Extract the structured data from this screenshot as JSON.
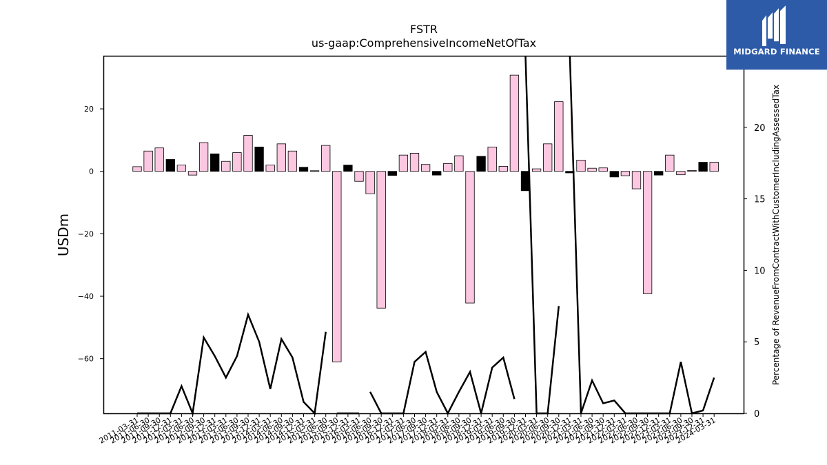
{
  "chart_data": {
    "type": "bar",
    "title": "FSTR",
    "subtitle": "us-gaap:ComprehensiveIncomeNetOfTax",
    "ylabel": "USDm",
    "y2label": "Percentage of RevenueFromContractWithCustomerIncludingAssessedTax",
    "ylim": [
      -77.5,
      37.0
    ],
    "y2lim": [
      0,
      25
    ],
    "yticks": [
      20,
      0,
      -20,
      -40,
      -60
    ],
    "y2ticks": [
      0,
      5,
      10,
      15,
      20,
      25
    ],
    "categories": [
      "2011-03-31",
      "2011-06-30",
      "2011-09-30",
      "2011-12-31",
      "2012-03-31",
      "2012-06-30",
      "2012-09-30",
      "2012-12-31",
      "2013-03-31",
      "2013-06-30",
      "2013-09-30",
      "2013-12-31",
      "2014-03-31",
      "2014-06-30",
      "2014-09-30",
      "2014-12-31",
      "2015-03-31",
      "2015-06-30",
      "2015-09-30",
      "2015-12-31",
      "2016-03-31",
      "2016-06-30",
      "2016-09-30",
      "2016-12-31",
      "2017-03-31",
      "2017-06-30",
      "2017-09-30",
      "2017-12-31",
      "2018-03-31",
      "2018-06-30",
      "2018-09-30",
      "2018-12-31",
      "2019-03-31",
      "2019-06-30",
      "2019-09-30",
      "2019-12-31",
      "2020-03-31",
      "2020-06-30",
      "2020-09-30",
      "2020-12-31",
      "2021-03-31",
      "2021-06-30",
      "2021-09-30",
      "2021-12-31",
      "2022-03-31",
      "2022-06-30",
      "2022-09-30",
      "2022-12-31",
      "2023-03-31",
      "2023-06-30",
      "2023-09-30",
      "2023-12-31",
      "2024-03-31"
    ],
    "series": [
      {
        "kind": "bar",
        "axis": "left",
        "values": [
          1.5,
          6.5,
          7.5,
          3.8,
          2.0,
          -1.2,
          9.2,
          5.6,
          3.2,
          6.0,
          11.5,
          7.8,
          2.0,
          8.8,
          6.5,
          1.3,
          0.2,
          8.3,
          -61.0,
          2.0,
          -3.2,
          -7.2,
          -43.8,
          -1.3,
          5.2,
          5.8,
          2.2,
          -1.2,
          2.5,
          5.0,
          -42.2,
          4.8,
          7.8,
          1.6,
          30.8,
          -6.2,
          0.8,
          8.8,
          22.3,
          -0.5,
          3.6,
          1.0,
          1.1,
          -1.8,
          -1.4,
          -5.6,
          -39.2,
          -1.2,
          5.2,
          -1.1,
          0.3,
          2.9,
          2.9
        ],
        "colors": [
          "#fcc8e1",
          "#fcc8e1",
          "#fcc8e1",
          "#000000",
          "#fcc8e1",
          "#fcc8e1",
          "#fcc8e1",
          "#000000",
          "#fcc8e1",
          "#fcc8e1",
          "#fcc8e1",
          "#000000",
          "#fcc8e1",
          "#fcc8e1",
          "#fcc8e1",
          "#000000",
          "#fcc8e1",
          "#fcc8e1",
          "#fcc8e1",
          "#000000",
          "#fcc8e1",
          "#fcc8e1",
          "#fcc8e1",
          "#000000",
          "#fcc8e1",
          "#fcc8e1",
          "#fcc8e1",
          "#000000",
          "#fcc8e1",
          "#fcc8e1",
          "#fcc8e1",
          "#000000",
          "#fcc8e1",
          "#fcc8e1",
          "#fcc8e1",
          "#000000",
          "#fcc8e1",
          "#fcc8e1",
          "#fcc8e1",
          "#000000",
          "#fcc8e1",
          "#fcc8e1",
          "#fcc8e1",
          "#000000",
          "#fcc8e1",
          "#fcc8e1",
          "#fcc8e1",
          "#000000",
          "#fcc8e1",
          "#fcc8e1",
          "#fcc8e1",
          "#000000",
          "#fcc8e1"
        ]
      },
      {
        "kind": "line",
        "axis": "right",
        "color": "#000000",
        "values": [
          0,
          0,
          0,
          0,
          1.9,
          0,
          5.3,
          4.0,
          2.5,
          4.0,
          6.9,
          5.0,
          1.7,
          5.2,
          3.9,
          0.8,
          0.0,
          5.7,
          0,
          0,
          0,
          1.5,
          0,
          0,
          0,
          3.6,
          4.3,
          1.5,
          0,
          1.5,
          2.9,
          0,
          3.2,
          3.9,
          1.0,
          25.0,
          0,
          0,
          7.5,
          25.0,
          0,
          2.3,
          0.7,
          0.9,
          0,
          0,
          0,
          0,
          0,
          3.6,
          0,
          0.2,
          2.5
        ],
        "breaks_after": [
          17,
          20,
          34,
          38
        ]
      }
    ],
    "grid": false,
    "legend": "none"
  },
  "logo": {
    "text": "MIDGARD FINANCE",
    "background": "#2d5ba8"
  }
}
